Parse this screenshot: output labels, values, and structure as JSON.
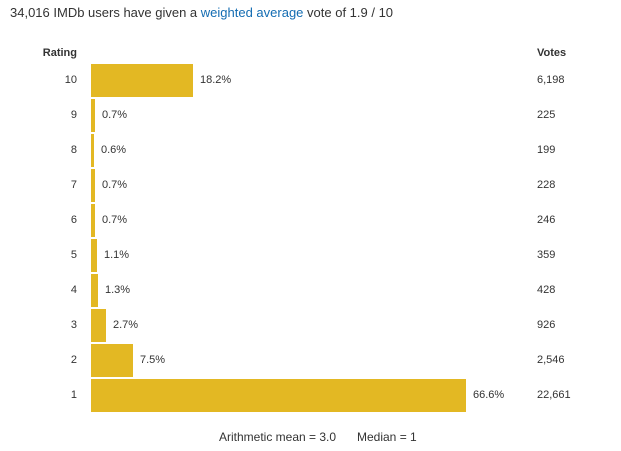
{
  "summary": {
    "prefix": "34,016 IMDb users have given a ",
    "link_text": "weighted average",
    "suffix": " vote of 1.9 / 10"
  },
  "headers": {
    "rating": "Rating",
    "votes": "Votes"
  },
  "colors": {
    "bar": "#e3b823",
    "link": "#136cb2",
    "text": "#333333"
  },
  "chart_data": {
    "type": "bar",
    "orientation": "horizontal",
    "xlim": [
      0,
      66.6
    ],
    "rows": [
      {
        "rating": "10",
        "percent": 18.2,
        "percent_label": "18.2%",
        "votes": "6,198"
      },
      {
        "rating": "9",
        "percent": 0.7,
        "percent_label": "0.7%",
        "votes": "225"
      },
      {
        "rating": "8",
        "percent": 0.6,
        "percent_label": "0.6%",
        "votes": "199"
      },
      {
        "rating": "7",
        "percent": 0.7,
        "percent_label": "0.7%",
        "votes": "228"
      },
      {
        "rating": "6",
        "percent": 0.7,
        "percent_label": "0.7%",
        "votes": "246"
      },
      {
        "rating": "5",
        "percent": 1.1,
        "percent_label": "1.1%",
        "votes": "359"
      },
      {
        "rating": "4",
        "percent": 1.3,
        "percent_label": "1.3%",
        "votes": "428"
      },
      {
        "rating": "3",
        "percent": 2.7,
        "percent_label": "2.7%",
        "votes": "926"
      },
      {
        "rating": "2",
        "percent": 7.5,
        "percent_label": "7.5%",
        "votes": "2,546"
      },
      {
        "rating": "1",
        "percent": 66.6,
        "percent_label": "66.6%",
        "votes": "22,661"
      }
    ]
  },
  "stats": {
    "mean": "Arithmetic mean = 3.0",
    "median": "Median = 1"
  }
}
